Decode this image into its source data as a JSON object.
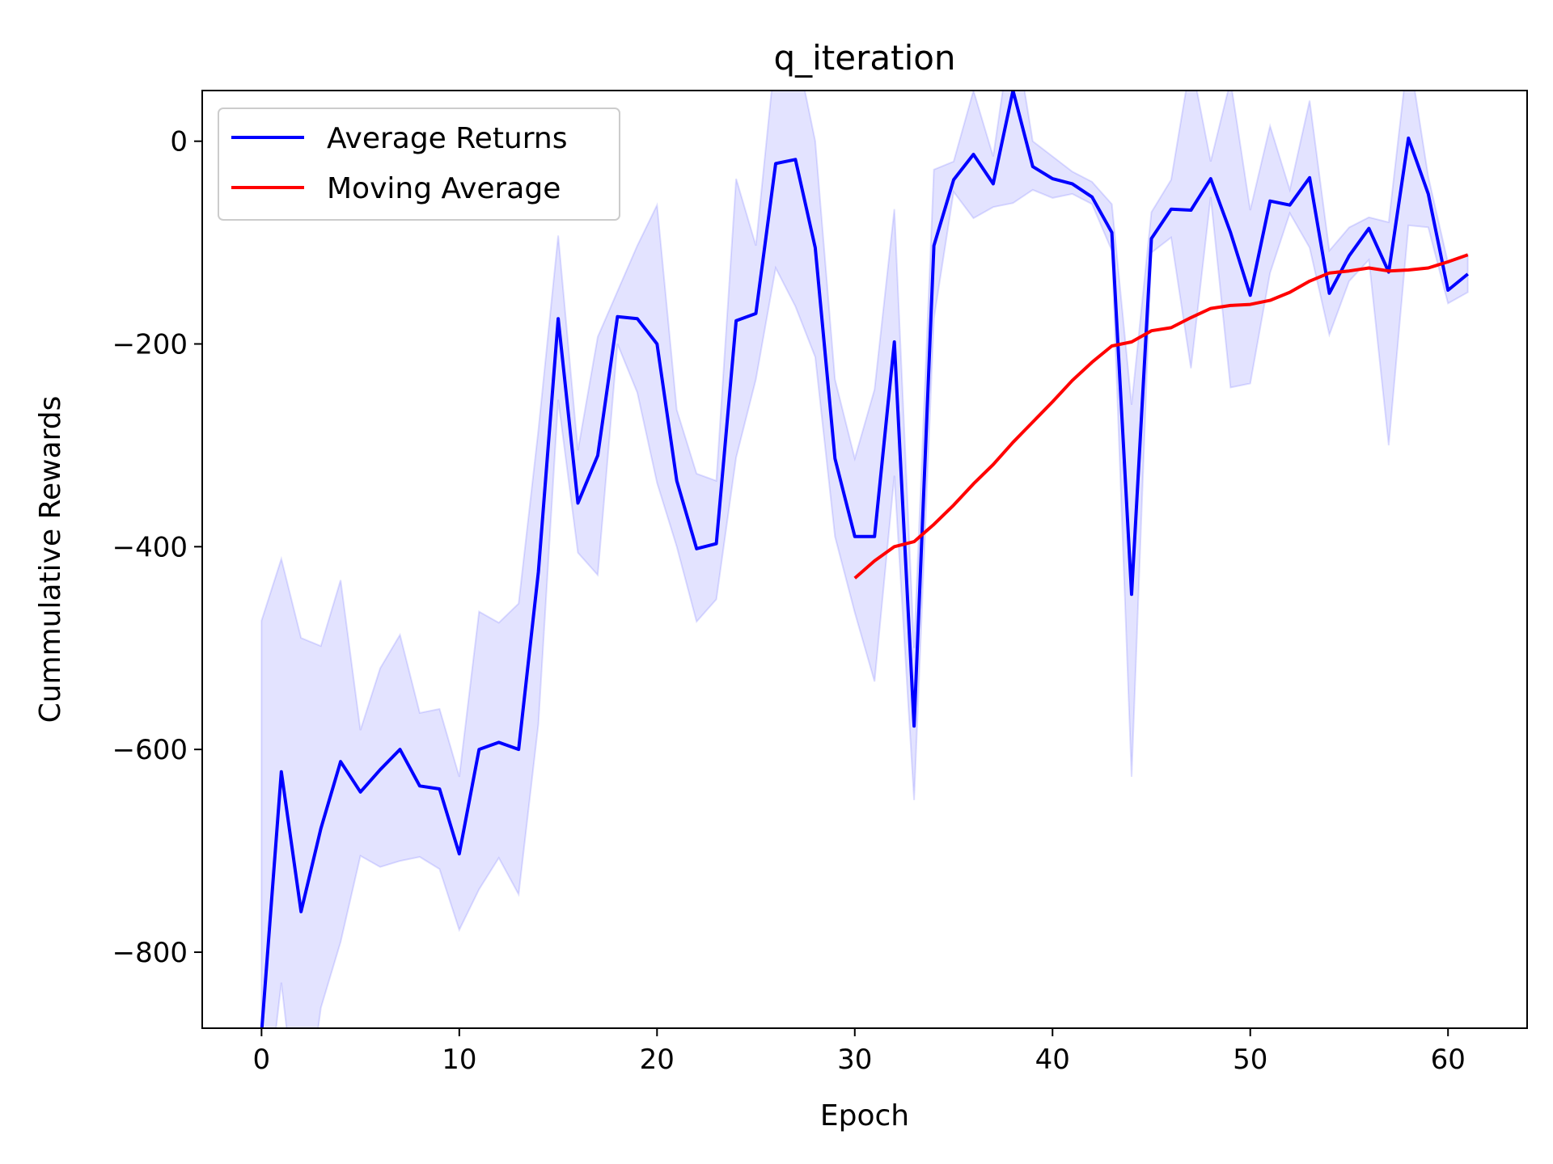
{
  "chart_data": {
    "type": "line",
    "title": "q_iteration",
    "xlabel": "Epoch",
    "ylabel": "Cummulative Rewards",
    "xlim": [
      -3,
      64
    ],
    "ylim": [
      -875,
      50
    ],
    "xticks": [
      0,
      10,
      20,
      30,
      40,
      50,
      60
    ],
    "yticks": [
      -800,
      -600,
      -400,
      -200,
      0
    ],
    "ytick_labels": [
      "−800",
      "−600",
      "−400",
      "−200",
      "0"
    ],
    "grid": false,
    "legend_position": "top-left",
    "colors": {
      "average_returns": "#0000ff",
      "moving_average": "#ff0000",
      "band": "#0000ff"
    },
    "series": [
      {
        "name": "Average Returns",
        "x": [
          0,
          1,
          2,
          3,
          4,
          5,
          6,
          7,
          8,
          9,
          10,
          11,
          12,
          13,
          14,
          15,
          16,
          17,
          18,
          19,
          20,
          21,
          22,
          23,
          24,
          25,
          26,
          27,
          28,
          29,
          30,
          31,
          32,
          33,
          34,
          35,
          36,
          37,
          38,
          39,
          40,
          41,
          42,
          43,
          44,
          45,
          46,
          47,
          48,
          49,
          50,
          51,
          52,
          53,
          54,
          55,
          56,
          57,
          58,
          59,
          60,
          61
        ],
        "values": [
          -880,
          -622,
          -760,
          -678,
          -612,
          -642,
          -620,
          -600,
          -636,
          -639,
          -703,
          -600,
          -593,
          -600,
          -425,
          -175,
          -357,
          -310,
          -173,
          -175,
          -200,
          -335,
          -402,
          -397,
          -177,
          -170,
          -22,
          -18,
          -105,
          -313,
          -390,
          -390,
          -198,
          -577,
          -103,
          -38,
          -13,
          -42,
          50,
          -25,
          -37,
          -42,
          -55,
          -90,
          -447,
          -96,
          -67,
          -68,
          -37,
          -90,
          -152,
          -59,
          -63,
          -36,
          -150,
          -113,
          -86,
          -129,
          3,
          -52,
          -147,
          -131
        ]
      },
      {
        "name": "Moving Average",
        "x": [
          30,
          31,
          32,
          33,
          34,
          35,
          36,
          37,
          38,
          39,
          40,
          41,
          42,
          43,
          44,
          45,
          46,
          47,
          48,
          49,
          50,
          51,
          52,
          53,
          54,
          55,
          56,
          57,
          58,
          59,
          60,
          61
        ],
        "values": [
          -431,
          -414,
          -400,
          -395,
          -378,
          -359,
          -338,
          -319,
          -297,
          -277,
          -257,
          -236,
          -218,
          -202,
          -198,
          -187,
          -184,
          -174,
          -165,
          -162,
          -161,
          -157,
          -149,
          -138,
          -130,
          -128,
          -125,
          -128,
          -127,
          -125,
          -119,
          -112
        ]
      }
    ],
    "band": {
      "x": [
        0,
        1,
        2,
        3,
        4,
        5,
        6,
        7,
        8,
        9,
        10,
        11,
        12,
        13,
        14,
        15,
        16,
        17,
        18,
        19,
        20,
        21,
        22,
        23,
        24,
        25,
        26,
        27,
        28,
        29,
        30,
        31,
        32,
        33,
        34,
        35,
        36,
        37,
        38,
        39,
        40,
        41,
        42,
        43,
        44,
        45,
        46,
        47,
        48,
        49,
        50,
        51,
        52,
        53,
        54,
        55,
        56,
        57,
        58,
        59,
        60,
        61
      ],
      "upper": [
        -473,
        -412,
        -490,
        -498,
        -433,
        -581,
        -520,
        -487,
        -564,
        -560,
        -627,
        -464,
        -475,
        -456,
        -285,
        -93,
        -305,
        -193,
        -148,
        -103,
        -63,
        -265,
        -328,
        -335,
        -37,
        -103,
        90,
        95,
        0,
        -235,
        -313,
        -245,
        -67,
        -500,
        -28,
        -20,
        50,
        -15,
        120,
        0,
        -15,
        -30,
        -40,
        -62,
        -260,
        -70,
        -38,
        80,
        -20,
        60,
        -68,
        15,
        -48,
        40,
        -108,
        -85,
        -75,
        -80,
        90,
        -35,
        -120,
        -112
      ],
      "lower": [
        -1000,
        -830,
        -1000,
        -855,
        -790,
        -705,
        -716,
        -710,
        -706,
        -718,
        -778,
        -738,
        -707,
        -743,
        -575,
        -255,
        -406,
        -428,
        -200,
        -248,
        -337,
        -400,
        -474,
        -452,
        -312,
        -235,
        -125,
        -163,
        -213,
        -390,
        -465,
        -533,
        -330,
        -650,
        -175,
        -50,
        -76,
        -65,
        -61,
        -48,
        -56,
        -52,
        -62,
        -108,
        -627,
        -110,
        -95,
        -224,
        -55,
        -243,
        -239,
        -130,
        -71,
        -105,
        -191,
        -138,
        -117,
        -300,
        -83,
        -85,
        -160,
        -149
      ]
    },
    "legend": [
      "Average Returns",
      "Moving Average"
    ]
  }
}
